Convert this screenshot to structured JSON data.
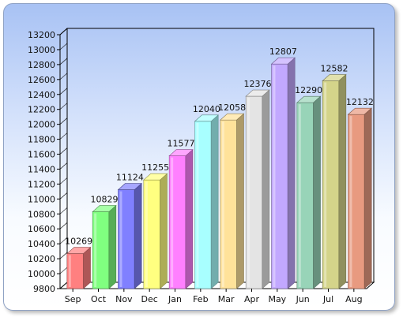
{
  "chart_data": {
    "type": "bar",
    "title": "",
    "xlabel": "",
    "ylabel": "",
    "categories": [
      "Sep",
      "Oct",
      "Nov",
      "Dec",
      "Jan",
      "Feb",
      "Mar",
      "Apr",
      "May",
      "Jun",
      "Jul",
      "Aug"
    ],
    "values": [
      10269,
      10829,
      11124,
      11255,
      11577,
      12040,
      12058,
      12376,
      12807,
      12290,
      12582,
      12132
    ],
    "colors": [
      "#ff8080",
      "#80ff80",
      "#8080ff",
      "#ffff80",
      "#ff80ff",
      "#a8ffff",
      "#ffe29a",
      "#e4e4e4",
      "#c2a8ff",
      "#98d4b8",
      "#d4d48a",
      "#e89a80"
    ],
    "ylim": [
      9800,
      13200
    ],
    "ytick_step": 200,
    "grid": false,
    "legend": "none",
    "style": "3d"
  }
}
